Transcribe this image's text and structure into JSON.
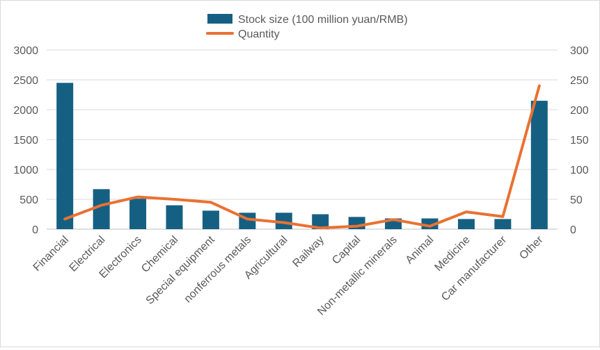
{
  "chart_data": {
    "type": "bar+line",
    "categories": [
      "Financial",
      "Electrical",
      "Electronics",
      "Chemical",
      "Special equipment",
      "nonferrous metals",
      "Agricultural",
      "Railway",
      "Capital",
      "Non-metallic minerals",
      "Animal",
      "Medicine",
      "Car manufacturer",
      "Other"
    ],
    "series": [
      {
        "name": "Stock size (100 million yuan/RMB)",
        "type": "bar",
        "axis": "left",
        "color": "#156082",
        "values": [
          2450,
          670,
          510,
          400,
          310,
          275,
          275,
          250,
          205,
          180,
          180,
          170,
          170,
          2150
        ]
      },
      {
        "name": "Quantity",
        "type": "line",
        "axis": "right",
        "color": "#E97132",
        "values": [
          17,
          40,
          54,
          50,
          45,
          17,
          11,
          2,
          5,
          16,
          5,
          29,
          21,
          240
        ]
      }
    ],
    "y_left": {
      "min": 0,
      "max": 3000,
      "ticks": [
        0,
        500,
        1000,
        1500,
        2000,
        2500,
        3000
      ]
    },
    "y_right": {
      "min": 0,
      "max": 300,
      "ticks": [
        0,
        50,
        100,
        150,
        200,
        250,
        300
      ]
    },
    "grid": true,
    "legend": "top-center"
  }
}
